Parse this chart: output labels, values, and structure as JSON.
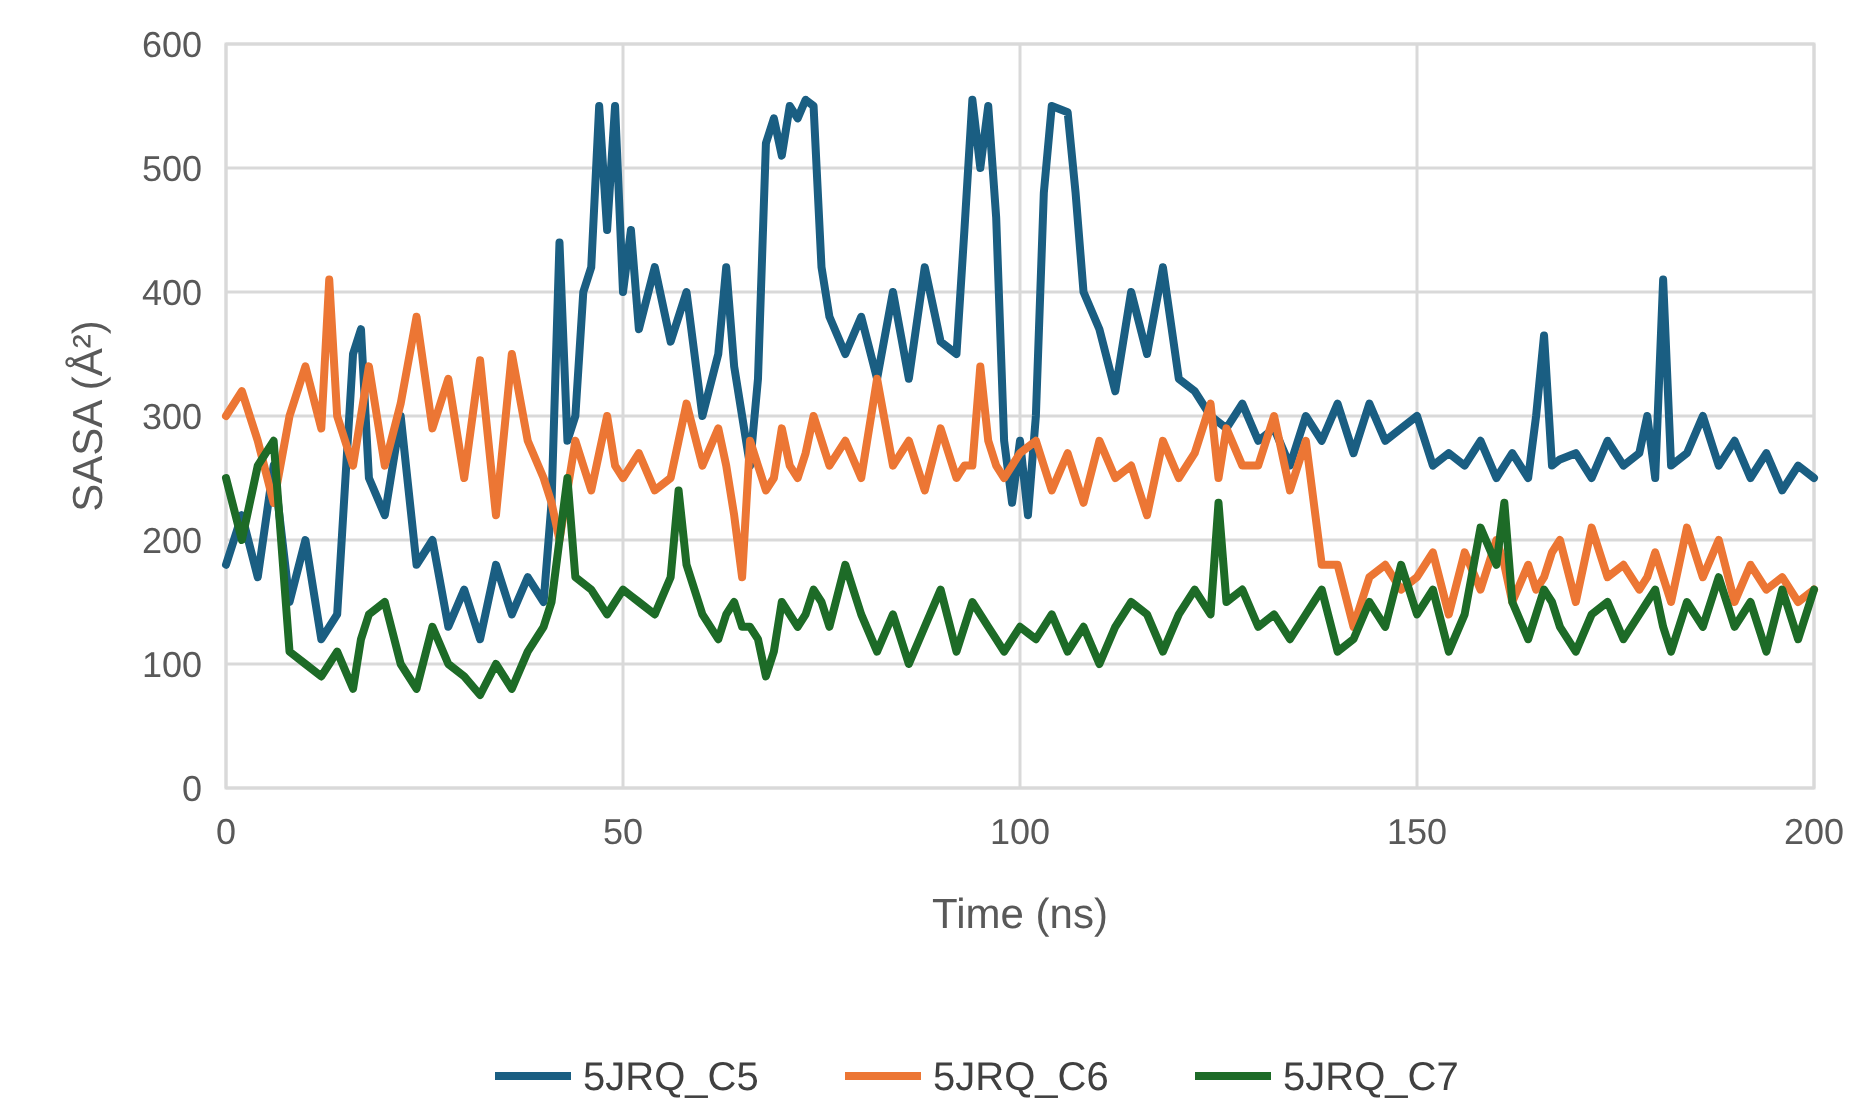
{
  "chart_data": {
    "type": "line",
    "xlabel": "Time (ns)",
    "ylabel": "SASA (Å²)",
    "xlim": [
      0,
      200
    ],
    "xticks": [
      0,
      50,
      100,
      150,
      200
    ],
    "ylim": [
      0,
      600
    ],
    "yticks": [
      0,
      100,
      200,
      300,
      400,
      500,
      600
    ],
    "grid": true,
    "legend": "bottom",
    "line_style": "solid",
    "x": [
      0,
      2,
      4,
      6,
      8,
      10,
      12,
      13,
      14,
      16,
      17,
      18,
      20,
      22,
      24,
      26,
      28,
      30,
      32,
      34,
      36,
      38,
      40,
      41,
      42,
      43,
      44,
      45,
      46,
      47,
      48,
      49,
      50,
      51,
      52,
      54,
      56,
      57,
      58,
      60,
      62,
      63,
      64,
      65,
      66,
      67,
      68,
      69,
      70,
      71,
      72,
      73,
      74,
      75,
      76,
      78,
      80,
      82,
      84,
      86,
      88,
      90,
      92,
      93,
      94,
      95,
      96,
      97,
      98,
      99,
      100,
      101,
      102,
      103,
      104,
      106,
      107,
      108,
      110,
      112,
      114,
      116,
      118,
      120,
      122,
      124,
      125,
      126,
      128,
      130,
      132,
      134,
      136,
      137,
      138,
      140,
      142,
      144,
      146,
      148,
      150,
      152,
      154,
      156,
      158,
      160,
      161,
      162,
      164,
      165,
      166,
      167,
      168,
      170,
      172,
      174,
      176,
      178,
      179,
      180,
      181,
      182,
      184,
      186,
      188,
      190,
      192,
      194,
      196,
      198,
      200
    ],
    "series": [
      {
        "name": "5JRQ_C5",
        "color": "#1a5e82",
        "values": [
          180,
          220,
          170,
          260,
          150,
          200,
          120,
          130,
          140,
          350,
          370,
          250,
          220,
          300,
          180,
          200,
          130,
          160,
          120,
          180,
          140,
          170,
          150,
          230,
          440,
          280,
          300,
          400,
          420,
          550,
          450,
          550,
          400,
          450,
          370,
          420,
          360,
          380,
          400,
          300,
          350,
          420,
          340,
          300,
          260,
          330,
          520,
          540,
          510,
          550,
          540,
          555,
          550,
          420,
          380,
          350,
          380,
          330,
          400,
          330,
          420,
          360,
          350,
          450,
          555,
          500,
          550,
          460,
          280,
          230,
          280,
          220,
          300,
          480,
          550,
          545,
          480,
          400,
          370,
          320,
          400,
          350,
          420,
          330,
          320,
          300,
          295,
          290,
          310,
          280,
          290,
          260,
          300,
          290,
          280,
          310,
          270,
          310,
          280,
          290,
          300,
          260,
          270,
          260,
          280,
          250,
          260,
          270,
          250,
          300,
          365,
          260,
          265,
          270,
          250,
          280,
          260,
          270,
          300,
          250,
          410,
          260,
          270,
          300,
          260,
          280,
          250,
          270,
          240,
          260,
          250
        ]
      },
      {
        "name": "5JRQ_C6",
        "color": "#ec7634",
        "values": [
          300,
          320,
          280,
          230,
          300,
          340,
          290,
          410,
          300,
          260,
          300,
          340,
          260,
          310,
          380,
          290,
          330,
          250,
          345,
          220,
          350,
          280,
          250,
          230,
          200,
          240,
          280,
          260,
          240,
          270,
          300,
          260,
          250,
          260,
          270,
          240,
          250,
          280,
          310,
          260,
          290,
          260,
          220,
          170,
          280,
          260,
          240,
          250,
          290,
          260,
          250,
          270,
          300,
          280,
          260,
          280,
          250,
          330,
          260,
          280,
          240,
          290,
          250,
          260,
          260,
          340,
          280,
          260,
          250,
          260,
          270,
          275,
          280,
          260,
          240,
          270,
          250,
          230,
          280,
          250,
          260,
          220,
          280,
          250,
          270,
          310,
          250,
          290,
          260,
          260,
          300,
          240,
          280,
          230,
          180,
          180,
          130,
          170,
          180,
          160,
          170,
          190,
          140,
          190,
          160,
          200,
          180,
          150,
          180,
          160,
          170,
          190,
          200,
          150,
          210,
          170,
          180,
          160,
          170,
          190,
          170,
          150,
          210,
          170,
          200,
          150,
          180,
          160,
          170,
          150,
          160
        ]
      },
      {
        "name": "5JRQ_C7",
        "color": "#1d6b27",
        "values": [
          250,
          200,
          260,
          280,
          110,
          100,
          90,
          100,
          110,
          80,
          120,
          140,
          150,
          100,
          80,
          130,
          100,
          90,
          75,
          100,
          80,
          110,
          130,
          150,
          200,
          250,
          170,
          165,
          160,
          150,
          140,
          150,
          160,
          155,
          150,
          140,
          170,
          240,
          180,
          140,
          120,
          140,
          150,
          130,
          130,
          120,
          90,
          110,
          150,
          140,
          130,
          140,
          160,
          150,
          130,
          180,
          140,
          110,
          140,
          100,
          130,
          160,
          110,
          130,
          150,
          140,
          130,
          120,
          110,
          120,
          130,
          125,
          120,
          130,
          140,
          110,
          120,
          130,
          100,
          130,
          150,
          140,
          110,
          140,
          160,
          140,
          230,
          150,
          160,
          130,
          140,
          120,
          140,
          150,
          160,
          110,
          120,
          150,
          130,
          180,
          140,
          160,
          110,
          140,
          210,
          180,
          230,
          150,
          120,
          140,
          160,
          150,
          130,
          110,
          140,
          150,
          120,
          140,
          150,
          160,
          130,
          110,
          150,
          130,
          170,
          130,
          150,
          110,
          160,
          120,
          160
        ]
      }
    ]
  }
}
